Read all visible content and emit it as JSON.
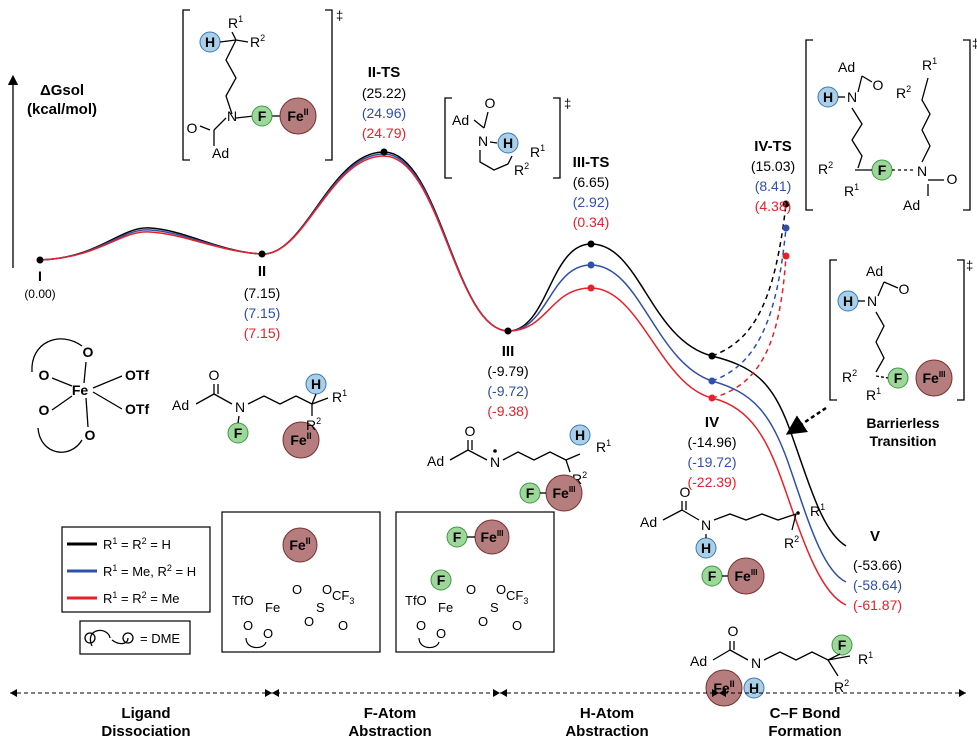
{
  "axis_label": {
    "line1": "ΔGsol",
    "line2": "(kcal/mol)"
  },
  "colors": {
    "black": "#000000",
    "blue": "#2f4fa8",
    "red": "#e8202a",
    "h_fill": "#a9cfe9",
    "h_stroke": "#3a78b5",
    "f_fill": "#9dd79a",
    "f_stroke": "#3c9a44",
    "fe_fill": "#b57d7d",
    "fe_stroke": "#7a3030"
  },
  "series": [
    {
      "key": "black",
      "legend": {
        "sym1": "R",
        "sup1": "1",
        "mid": " = R",
        "sup2": "2",
        "tail": " = H"
      }
    },
    {
      "key": "blue",
      "legend": {
        "sym1": "R",
        "sup1": "1",
        "mid": " = Me, R",
        "sup2": "2",
        "tail": " = H"
      }
    },
    {
      "key": "red",
      "legend": {
        "sym1": "R",
        "sup1": "1",
        "mid": " = R",
        "sup2": "2",
        "tail": " = Me"
      }
    }
  ],
  "dme_legend": "= DME",
  "states": [
    {
      "id": "I",
      "name": "I",
      "values": [
        "(0.00)"
      ]
    },
    {
      "id": "II",
      "name": "II",
      "values": [
        "(7.15)",
        "(7.15)",
        "(7.15)"
      ]
    },
    {
      "id": "II-TS",
      "name": "II-TS",
      "values": [
        "(25.22)",
        "(24.96)",
        "(24.79)"
      ]
    },
    {
      "id": "III",
      "name": "III",
      "values": [
        "(-9.79)",
        "(-9.72)",
        "(-9.38)"
      ]
    },
    {
      "id": "III-TS",
      "name": "III-TS",
      "values": [
        "(6.65)",
        "(2.92)",
        "(0.34)"
      ]
    },
    {
      "id": "IV",
      "name": "IV",
      "values": [
        "(-14.96)",
        "(-19.72)",
        "(-22.39)"
      ]
    },
    {
      "id": "IV-TS",
      "name": "IV-TS",
      "values": [
        "(15.03)",
        "(8.41)",
        "(4.38)"
      ]
    },
    {
      "id": "V",
      "name": "V",
      "values": [
        "(-53.66)",
        "(-58.64)",
        "(-61.87)"
      ]
    }
  ],
  "barrierless": {
    "line1": "Barrierless",
    "line2": "Transition"
  },
  "stages": [
    {
      "line1": "Ligand",
      "line2": "Dissociation"
    },
    {
      "line1": "F-Atom",
      "line2": "Abstraction"
    },
    {
      "line1": "H-Atom",
      "line2": "Abstraction"
    },
    {
      "line1": "C–F Bond",
      "line2": "Formation"
    }
  ],
  "chem": {
    "dagger": "‡",
    "H": "H",
    "F": "F",
    "Fe": "Fe",
    "II": "II",
    "III": "III",
    "R": "R",
    "one": "1",
    "two": "2",
    "N": "N",
    "O": "O",
    "Ad": "Ad",
    "OTf": "OTf",
    "TfO": "TfO",
    "S": "S",
    "CF": "CF",
    "three": "3"
  }
}
